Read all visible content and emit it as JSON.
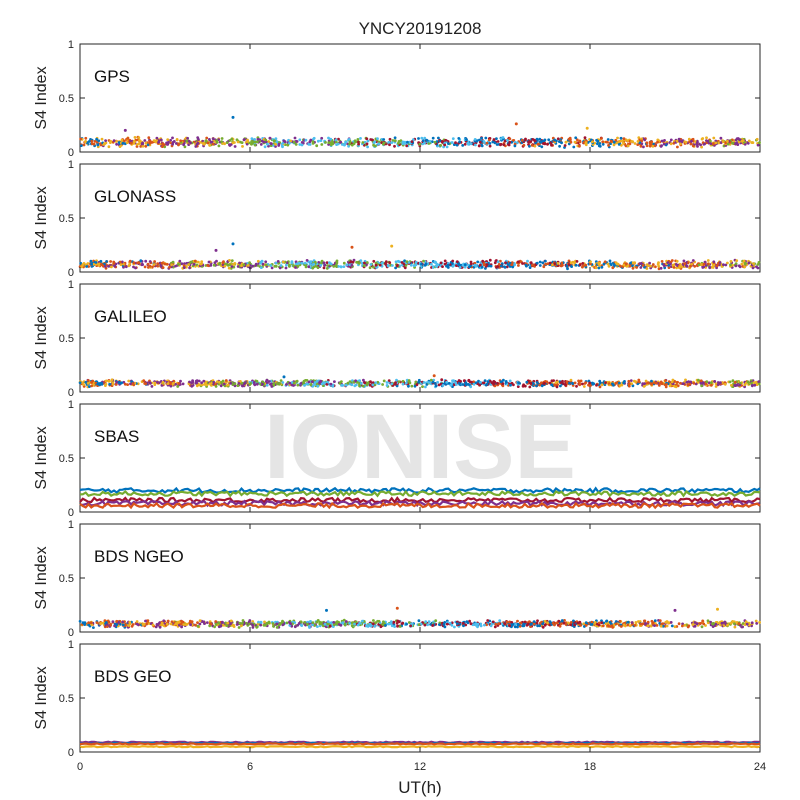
{
  "title": "YNCY20191208",
  "watermark": "IONISE",
  "chart_data": {
    "type": "scatter",
    "xlabel": "UT(h)",
    "xlim": [
      0,
      24
    ],
    "x_ticks": [
      0,
      6,
      12,
      18,
      24
    ],
    "x_tick_labels": [
      "0",
      "6",
      "12",
      "18",
      "24"
    ],
    "series_colors": [
      "#0072BD",
      "#D95319",
      "#EDB120",
      "#7E2F8E",
      "#77AC30",
      "#4DBEEE",
      "#A2142F"
    ],
    "panels": [
      {
        "label": "GPS",
        "ylabel": "S4 Index",
        "ylim": [
          0,
          1
        ],
        "y_ticks": [
          0,
          0.5,
          1
        ],
        "y_tick_labels": [
          "0",
          "0.5",
          "1"
        ],
        "base_level": 0.09,
        "noise": 0.035,
        "outliers": [
          {
            "x": 5.4,
            "y": 0.32
          },
          {
            "x": 15.4,
            "y": 0.26
          },
          {
            "x": 17.9,
            "y": 0.22
          },
          {
            "x": 1.6,
            "y": 0.2
          }
        ]
      },
      {
        "label": "GLONASS",
        "ylabel": "S4 Index",
        "ylim": [
          0,
          1
        ],
        "y_ticks": [
          0,
          0.5,
          1
        ],
        "y_tick_labels": [
          "0",
          "0.5",
          "1"
        ],
        "base_level": 0.07,
        "noise": 0.03,
        "outliers": [
          {
            "x": 5.4,
            "y": 0.26
          },
          {
            "x": 9.6,
            "y": 0.23
          },
          {
            "x": 11.0,
            "y": 0.24
          },
          {
            "x": 4.8,
            "y": 0.2
          }
        ]
      },
      {
        "label": "GALILEO",
        "ylabel": "S4 Index",
        "ylim": [
          0,
          1
        ],
        "y_ticks": [
          0,
          0.5,
          1
        ],
        "y_tick_labels": [
          "0",
          "0.5",
          "1"
        ],
        "base_level": 0.08,
        "noise": 0.025,
        "outliers": [
          {
            "x": 7.2,
            "y": 0.14
          },
          {
            "x": 12.5,
            "y": 0.15
          }
        ]
      },
      {
        "label": "SBAS",
        "ylabel": "S4 Index",
        "ylim": [
          0,
          1
        ],
        "y_ticks": [
          0,
          0.5,
          1
        ],
        "y_tick_labels": [
          "0",
          "0.5",
          "1"
        ],
        "base_level": 0.12,
        "noise": 0.02,
        "lines": [
          {
            "color": "#0072BD",
            "level": 0.2
          },
          {
            "color": "#77AC30",
            "level": 0.17
          },
          {
            "color": "#A2142F",
            "level": 0.11
          },
          {
            "color": "#7E2F8E",
            "level": 0.08
          },
          {
            "color": "#D95319",
            "level": 0.06
          }
        ]
      },
      {
        "label": "BDS NGEO",
        "ylabel": "S4 Index",
        "ylim": [
          0,
          1
        ],
        "y_ticks": [
          0,
          0.5,
          1
        ],
        "y_tick_labels": [
          "0",
          "0.5",
          "1"
        ],
        "base_level": 0.075,
        "noise": 0.025,
        "outliers": [
          {
            "x": 8.7,
            "y": 0.2
          },
          {
            "x": 11.2,
            "y": 0.22
          },
          {
            "x": 22.5,
            "y": 0.21
          },
          {
            "x": 21.0,
            "y": 0.2
          }
        ]
      },
      {
        "label": "BDS GEO",
        "ylabel": "S4 Index",
        "ylim": [
          0,
          1
        ],
        "y_ticks": [
          0,
          0.5,
          1
        ],
        "y_tick_labels": [
          "0",
          "0.5",
          "1"
        ],
        "base_level": 0.07,
        "noise": 0.005,
        "lines": [
          {
            "color": "#7E2F8E",
            "level": 0.09
          },
          {
            "color": "#0072BD",
            "level": 0.08
          },
          {
            "color": "#D95319",
            "level": 0.075
          },
          {
            "color": "#EDB120",
            "level": 0.05
          }
        ]
      }
    ]
  }
}
